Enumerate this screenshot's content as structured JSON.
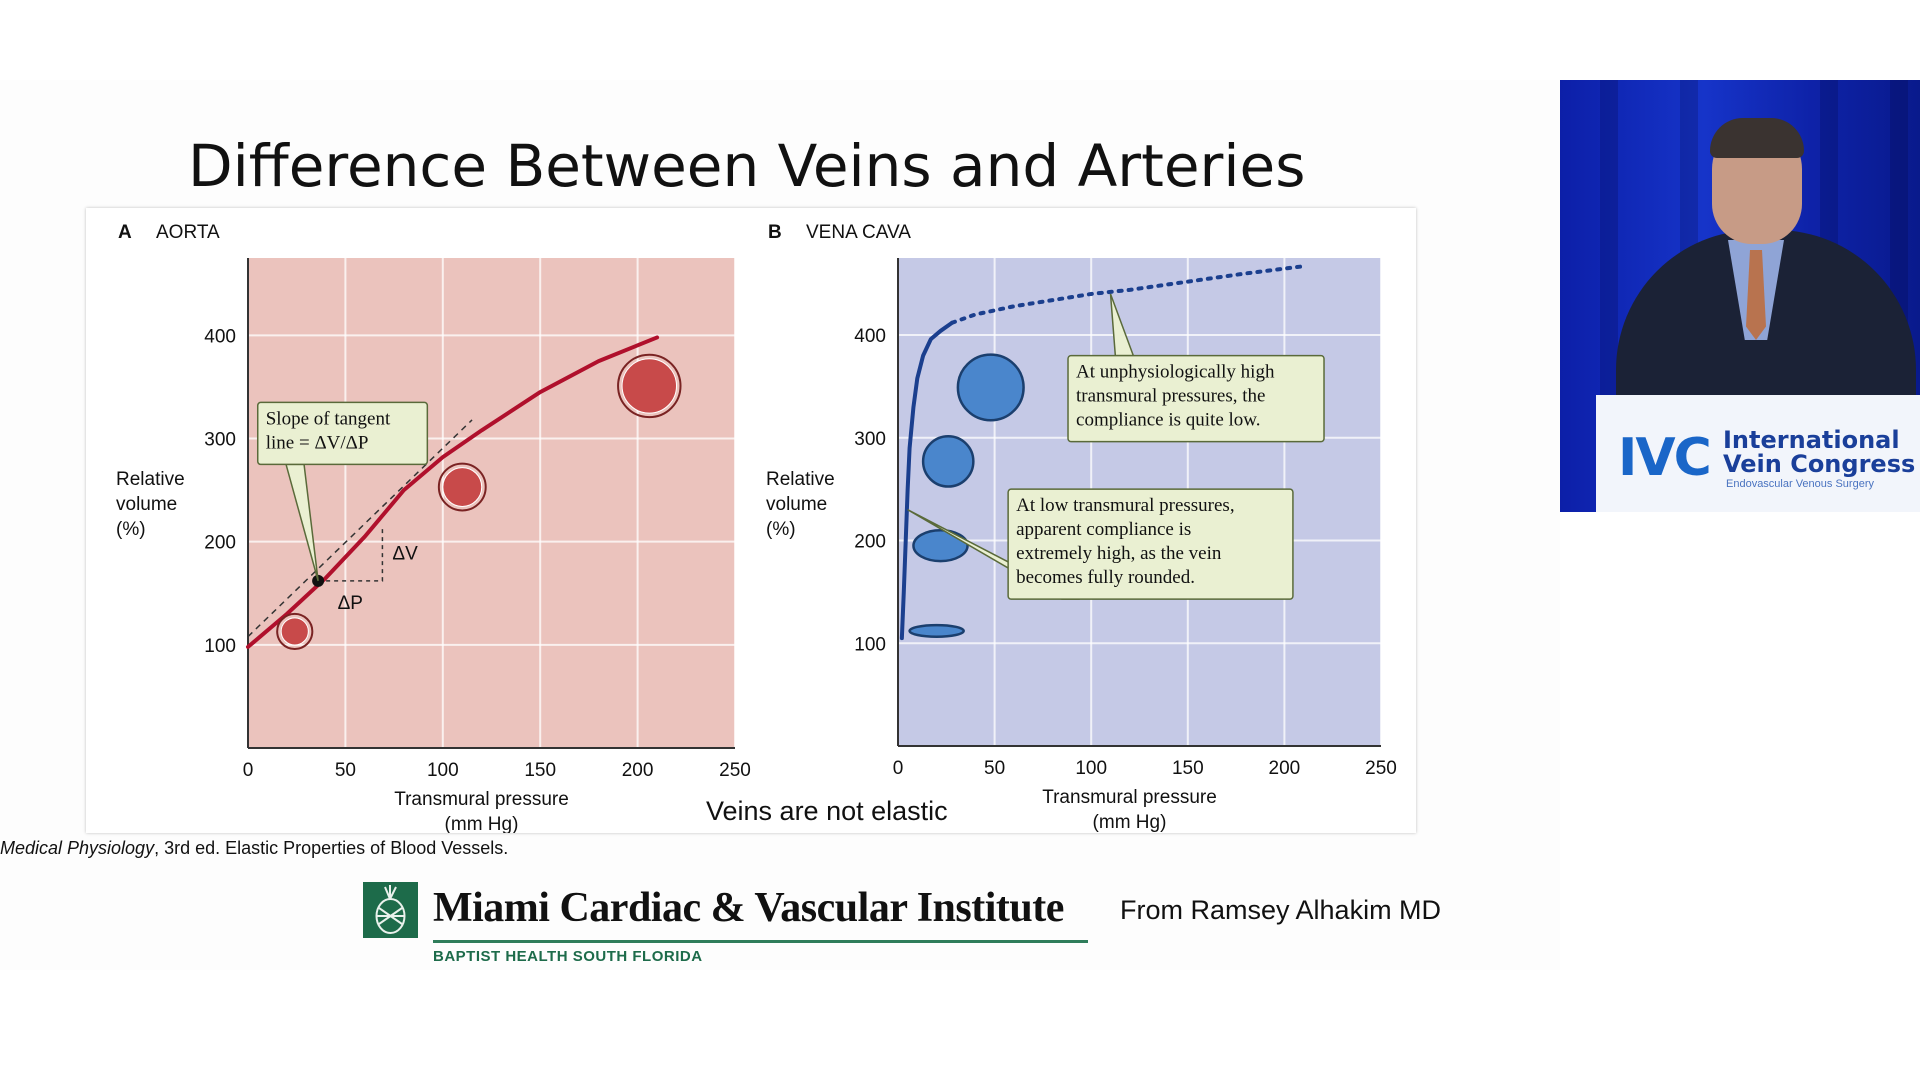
{
  "slide": {
    "title": "Difference Between Veins and Arteries",
    "note": "Veins are not elastic",
    "citation_italic": "Medical Physiology",
    "citation_rest": ", 3rd ed. Elastic Properties of Blood Vessels.",
    "credit": "From Ramsey Alhakim MD"
  },
  "logo": {
    "name": "Miami Cardiac & Vascular Institute",
    "subtitle": "BAPTIST HEALTH SOUTH FLORIDA"
  },
  "video": {
    "brand_mark": "IVC",
    "brand_line1": "International",
    "brand_line2": "Vein Congress",
    "brand_tagline": "Endovascular Venous Surgery"
  },
  "colors": {
    "aorta_bg": "#ebc3bd",
    "aorta_line": "#b0102c",
    "aorta_circle": "#c84a4a",
    "vena_bg": "#c5c9e6",
    "vena_line": "#1b3f8e",
    "vena_circle": "#4a86cc",
    "callout_bg": "#eaf0d2",
    "callout_border": "#5a6a3a"
  },
  "chart_data": [
    {
      "type": "line",
      "panel_letter": "A",
      "title": "AORTA",
      "xlabel": "Transmural pressure",
      "xlabel_unit": "(mm Hg)",
      "ylabel": [
        "Relative",
        "volume",
        "(%)"
      ],
      "xlim": [
        0,
        250
      ],
      "ylim": [
        0,
        475
      ],
      "xticks": [
        0,
        50,
        100,
        150,
        200,
        250
      ],
      "yticks": [
        100,
        200,
        300,
        400
      ],
      "grid": true,
      "series": [
        {
          "x": [
            0,
            20,
            40,
            60,
            80,
            100,
            120,
            150,
            180,
            210
          ],
          "y": [
            98,
            130,
            165,
            205,
            250,
            282,
            308,
            345,
            375,
            398
          ]
        }
      ],
      "tangent": {
        "x": [
          0,
          115
        ],
        "y": [
          108,
          318
        ]
      },
      "tangent_point": {
        "x": 36,
        "y": 162
      },
      "deltas": {
        "dV": "ΔV",
        "dP": "ΔP",
        "corner": {
          "x": 69,
          "y": 215
        }
      },
      "circles": [
        {
          "x": 24,
          "y": 113,
          "r": 8
        },
        {
          "x": 110,
          "y": 253,
          "r": 11
        },
        {
          "x": 206,
          "y": 351,
          "r": 15
        }
      ],
      "callout": {
        "lines": [
          "Slope of tangent",
          "line = ΔV/ΔP"
        ],
        "x": 5,
        "y": 335,
        "target": {
          "x": 36,
          "y": 162
        }
      }
    },
    {
      "type": "line",
      "panel_letter": "B",
      "title": "VENA CAVA",
      "xlabel": "Transmural pressure",
      "xlabel_unit": "(mm Hg)",
      "ylabel": [
        "Relative",
        "volume",
        "(%)"
      ],
      "xlim": [
        0,
        250
      ],
      "ylim": [
        0,
        475
      ],
      "xticks": [
        0,
        50,
        100,
        150,
        200,
        250
      ],
      "yticks": [
        100,
        200,
        300,
        400
      ],
      "grid": true,
      "series": [
        {
          "style": "solid",
          "x": [
            2,
            3,
            4,
            5,
            6,
            8,
            10,
            13,
            17,
            22,
            28
          ],
          "y": [
            105,
            150,
            200,
            250,
            290,
            330,
            358,
            380,
            396,
            404,
            412
          ]
        },
        {
          "style": "dotted",
          "x": [
            28,
            40,
            60,
            80,
            100,
            120,
            150,
            180,
            210
          ],
          "y": [
            412,
            420,
            428,
            434,
            440,
            444,
            452,
            460,
            467
          ]
        }
      ],
      "circles": [
        {
          "x": 20,
          "y": 112,
          "shape": "flat",
          "rx": 14,
          "ry": 3
        },
        {
          "x": 22,
          "y": 195,
          "shape": "ellipse",
          "rx": 14,
          "ry": 8
        },
        {
          "x": 26,
          "y": 277,
          "shape": "circle",
          "rx": 13,
          "ry": 13
        },
        {
          "x": 48,
          "y": 349,
          "shape": "circle",
          "rx": 17,
          "ry": 17
        }
      ],
      "callouts": [
        {
          "lines": [
            "At unphysiologically high",
            "transmural pressures, the",
            "compliance is quite low."
          ],
          "x": 88,
          "y": 380,
          "target": {
            "x": 110,
            "y": 440
          }
        },
        {
          "lines": [
            "At low transmural pressures,",
            "apparent compliance is",
            "extremely high, as the vein",
            "becomes fully rounded."
          ],
          "x": 57,
          "y": 250,
          "target": {
            "x": 5,
            "y": 230
          }
        }
      ]
    }
  ]
}
